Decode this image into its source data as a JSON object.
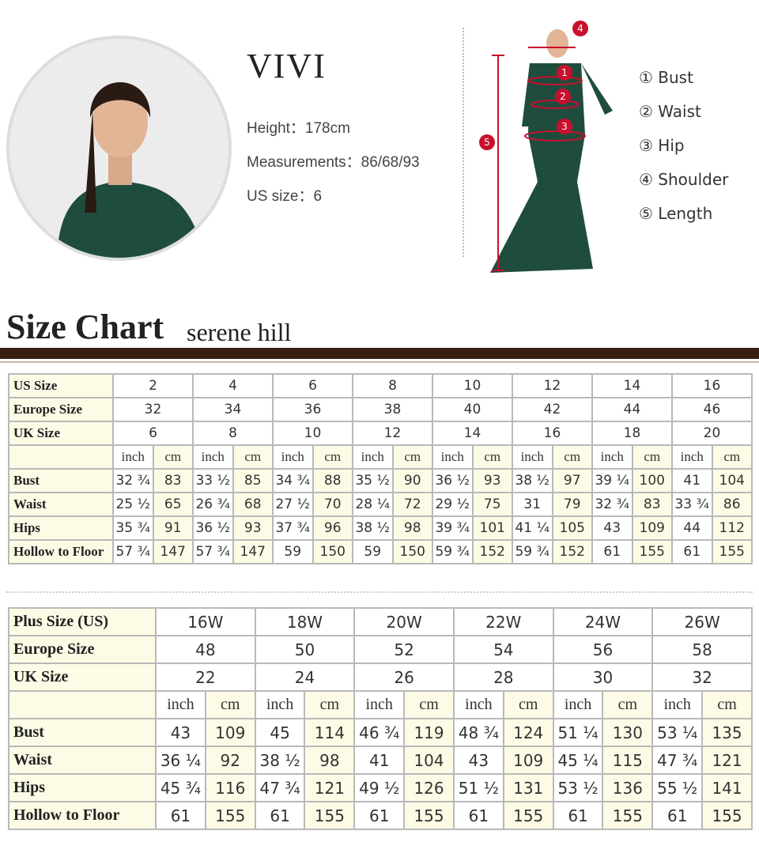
{
  "model": {
    "name": "VIVI",
    "height": "Height：178cm",
    "measurements": "Measurements：86/68/93",
    "us_size": "US size：6"
  },
  "legend": [
    "① Bust",
    "② Waist",
    "③ Hip",
    "④ Shoulder",
    "⑤ Length"
  ],
  "figure_markers": [
    "1",
    "2",
    "3",
    "4",
    "5"
  ],
  "header": {
    "title": "Size Chart",
    "subtitle": "serene hill"
  },
  "colors": {
    "dress": "#1f4d3d",
    "bar": "#3b1e12",
    "cell_cream": "#fdfbe6",
    "marker": "#c8102e"
  },
  "table1": {
    "rows_top": [
      {
        "label": "US Size",
        "values": [
          "2",
          "4",
          "6",
          "8",
          "10",
          "12",
          "14",
          "16"
        ]
      },
      {
        "label": "Europe Size",
        "values": [
          "32",
          "34",
          "36",
          "38",
          "40",
          "42",
          "44",
          "46"
        ]
      },
      {
        "label": "UK Size",
        "values": [
          "6",
          "8",
          "10",
          "12",
          "14",
          "16",
          "18",
          "20"
        ]
      }
    ],
    "units": [
      "inch",
      "cm"
    ],
    "rows": [
      {
        "label": "Bust",
        "values": [
          "32 ¾",
          "83",
          "33 ½",
          "85",
          "34 ¾",
          "88",
          "35 ½",
          "90",
          "36 ½",
          "93",
          "38 ½",
          "97",
          "39 ¼",
          "100",
          "41",
          "104"
        ]
      },
      {
        "label": "Waist",
        "values": [
          "25 ½",
          "65",
          "26 ¾",
          "68",
          "27 ½",
          "70",
          "28 ¼",
          "72",
          "29 ½",
          "75",
          "31",
          "79",
          "32 ¾",
          "83",
          "33 ¾",
          "86"
        ]
      },
      {
        "label": "Hips",
        "values": [
          "35 ¾",
          "91",
          "36 ½",
          "93",
          "37 ¾",
          "96",
          "38 ½",
          "98",
          "39 ¾",
          "101",
          "41 ¼",
          "105",
          "43",
          "109",
          "44",
          "112"
        ]
      },
      {
        "label": "Hollow to Floor",
        "values": [
          "57 ¾",
          "147",
          "57 ¾",
          "147",
          "59",
          "150",
          "59",
          "150",
          "59 ¾",
          "152",
          "59 ¾",
          "152",
          "61",
          "155",
          "61",
          "155"
        ]
      }
    ]
  },
  "table2": {
    "rows_top": [
      {
        "label": "Plus Size (US)",
        "values": [
          "16W",
          "18W",
          "20W",
          "22W",
          "24W",
          "26W"
        ]
      },
      {
        "label": "Europe Size",
        "values": [
          "48",
          "50",
          "52",
          "54",
          "56",
          "58"
        ]
      },
      {
        "label": "UK Size",
        "values": [
          "22",
          "24",
          "26",
          "28",
          "30",
          "32"
        ]
      }
    ],
    "units": [
      "inch",
      "cm"
    ],
    "rows": [
      {
        "label": "Bust",
        "values": [
          "43",
          "109",
          "45",
          "114",
          "46 ¾",
          "119",
          "48 ¾",
          "124",
          "51 ¼",
          "130",
          "53 ¼",
          "135"
        ]
      },
      {
        "label": "Waist",
        "values": [
          "36 ¼",
          "92",
          "38 ½",
          "98",
          "41",
          "104",
          "43",
          "109",
          "45 ¼",
          "115",
          "47 ¾",
          "121"
        ]
      },
      {
        "label": "Hips",
        "values": [
          "45 ¾",
          "116",
          "47 ¾",
          "121",
          "49 ½",
          "126",
          "51 ½",
          "131",
          "53 ½",
          "136",
          "55 ½",
          "141"
        ]
      },
      {
        "label": "Hollow to Floor",
        "values": [
          "61",
          "155",
          "61",
          "155",
          "61",
          "155",
          "61",
          "155",
          "61",
          "155",
          "61",
          "155"
        ]
      }
    ]
  }
}
